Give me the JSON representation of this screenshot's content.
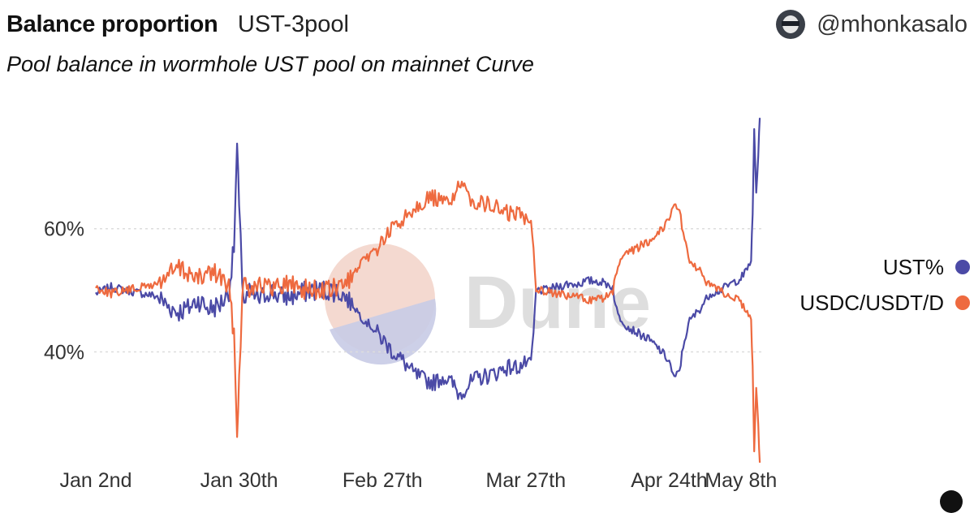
{
  "header": {
    "title": "Balance proportion",
    "query_name": "UST-3pool",
    "subtitle": "Pool balance in wormhole UST pool on mainnet Curve",
    "author": "@mhonkasalo"
  },
  "watermark": "Dune",
  "colors": {
    "ust": "#4b4aa6",
    "usdc": "#ee6a3f"
  },
  "chart_data": {
    "type": "line",
    "title": "Balance proportion",
    "subtitle": "Pool balance in wormhole UST pool on mainnet Curve",
    "xlabel": "",
    "ylabel": "",
    "x_tick_labels": [
      "Jan 2nd",
      "Jan 30th",
      "Feb 27th",
      "Mar 27th",
      "Apr 24th",
      "May 8th"
    ],
    "x_tick_days": [
      0,
      28,
      56,
      84,
      112,
      126
    ],
    "y_ticks": [
      40,
      60
    ],
    "y_tick_labels": [
      "40%",
      "60%"
    ],
    "ylim": [
      22,
      80
    ],
    "xlim_days": [
      0,
      130
    ],
    "grid": "horizontal dotted",
    "legend_position": "right",
    "series": [
      {
        "name": "UST%",
        "color": "#4b4aa6",
        "points": [
          [
            0,
            49.5
          ],
          [
            3,
            50.5
          ],
          [
            6,
            50
          ],
          [
            9,
            49.5
          ],
          [
            12,
            49
          ],
          [
            14,
            47.5
          ],
          [
            16,
            46.5
          ],
          [
            18,
            47
          ],
          [
            20,
            48.5
          ],
          [
            22,
            47
          ],
          [
            24,
            47.5
          ],
          [
            25,
            48.5
          ],
          [
            26,
            50
          ],
          [
            27,
            57
          ],
          [
            27.6,
            73.5
          ],
          [
            28,
            63
          ],
          [
            28.6,
            52
          ],
          [
            29,
            48
          ],
          [
            30,
            49.5
          ],
          [
            32,
            48.5
          ],
          [
            34,
            50
          ],
          [
            36,
            49
          ],
          [
            38,
            49
          ],
          [
            40,
            49.5
          ],
          [
            42,
            50
          ],
          [
            44,
            50
          ],
          [
            46,
            50
          ],
          [
            48,
            49.5
          ],
          [
            50,
            48
          ],
          [
            52,
            45.5
          ],
          [
            54,
            44
          ],
          [
            56,
            42
          ],
          [
            58,
            40
          ],
          [
            60,
            38.5
          ],
          [
            62,
            36.5
          ],
          [
            64,
            35.5
          ],
          [
            66,
            35
          ],
          [
            68,
            36
          ],
          [
            70,
            34.5
          ],
          [
            71,
            33
          ],
          [
            72,
            34
          ],
          [
            74,
            35.5
          ],
          [
            76,
            36
          ],
          [
            78,
            36.5
          ],
          [
            80,
            37.5
          ],
          [
            82,
            37.5
          ],
          [
            84,
            38
          ],
          [
            85,
            38.5
          ],
          [
            85.5,
            43
          ],
          [
            86,
            50
          ],
          [
            88,
            50
          ],
          [
            90,
            50.5
          ],
          [
            92,
            51
          ],
          [
            94,
            51
          ],
          [
            96,
            51.5
          ],
          [
            98,
            51.5
          ],
          [
            100,
            51
          ],
          [
            101,
            50.5
          ],
          [
            101.5,
            47.5
          ],
          [
            102,
            46
          ],
          [
            104,
            44
          ],
          [
            106,
            43
          ],
          [
            108,
            42
          ],
          [
            110,
            40.5
          ],
          [
            112,
            38.5
          ],
          [
            113,
            35.5
          ],
          [
            114,
            37
          ],
          [
            115,
            42
          ],
          [
            116,
            45
          ],
          [
            118,
            47
          ],
          [
            120,
            49.5
          ],
          [
            122,
            50
          ],
          [
            124,
            51
          ],
          [
            126,
            52
          ],
          [
            127,
            53
          ],
          [
            128,
            55
          ],
          [
            128.3,
            62
          ],
          [
            128.6,
            76
          ],
          [
            129,
            66
          ],
          [
            129.4,
            72
          ],
          [
            129.7,
            78
          ]
        ]
      },
      {
        "name": "USDC/USDT/D",
        "color": "#ee6a3f",
        "points": [
          [
            0,
            50.5
          ],
          [
            3,
            49.5
          ],
          [
            6,
            50
          ],
          [
            9,
            50.5
          ],
          [
            12,
            51
          ],
          [
            14,
            52.5
          ],
          [
            16,
            53.5
          ],
          [
            18,
            53
          ],
          [
            20,
            51.5
          ],
          [
            22,
            53
          ],
          [
            24,
            52.5
          ],
          [
            25,
            51.5
          ],
          [
            26,
            50
          ],
          [
            27,
            43
          ],
          [
            27.6,
            26.5
          ],
          [
            28,
            37
          ],
          [
            28.6,
            48
          ],
          [
            29,
            52
          ],
          [
            30,
            50.5
          ],
          [
            32,
            51.5
          ],
          [
            34,
            50
          ],
          [
            36,
            51
          ],
          [
            38,
            51
          ],
          [
            40,
            50.5
          ],
          [
            42,
            50
          ],
          [
            44,
            50
          ],
          [
            46,
            50
          ],
          [
            48,
            50.5
          ],
          [
            50,
            52
          ],
          [
            52,
            54.5
          ],
          [
            54,
            56
          ],
          [
            56,
            58
          ],
          [
            58,
            60
          ],
          [
            60,
            61.5
          ],
          [
            62,
            63.5
          ],
          [
            64,
            64.5
          ],
          [
            66,
            65
          ],
          [
            68,
            64
          ],
          [
            70,
            65.5
          ],
          [
            71,
            67
          ],
          [
            72,
            66
          ],
          [
            74,
            64.5
          ],
          [
            76,
            64
          ],
          [
            78,
            63.5
          ],
          [
            80,
            62.5
          ],
          [
            82,
            62.5
          ],
          [
            84,
            62
          ],
          [
            85,
            61.5
          ],
          [
            85.5,
            57
          ],
          [
            86,
            50
          ],
          [
            88,
            50
          ],
          [
            90,
            49.5
          ],
          [
            92,
            49
          ],
          [
            94,
            49
          ],
          [
            96,
            48.5
          ],
          [
            98,
            48.5
          ],
          [
            100,
            49
          ],
          [
            101,
            49.5
          ],
          [
            101.5,
            52.5
          ],
          [
            102,
            54
          ],
          [
            104,
            56
          ],
          [
            106,
            57
          ],
          [
            108,
            58
          ],
          [
            110,
            59.5
          ],
          [
            112,
            61.5
          ],
          [
            113,
            64.5
          ],
          [
            114,
            63
          ],
          [
            115,
            58
          ],
          [
            116,
            55
          ],
          [
            118,
            53
          ],
          [
            120,
            50.5
          ],
          [
            122,
            50
          ],
          [
            124,
            49
          ],
          [
            126,
            48
          ],
          [
            127,
            47
          ],
          [
            128,
            45
          ],
          [
            128.3,
            38
          ],
          [
            128.6,
            24
          ],
          [
            129,
            34
          ],
          [
            129.4,
            28
          ],
          [
            129.7,
            22
          ]
        ]
      }
    ]
  }
}
